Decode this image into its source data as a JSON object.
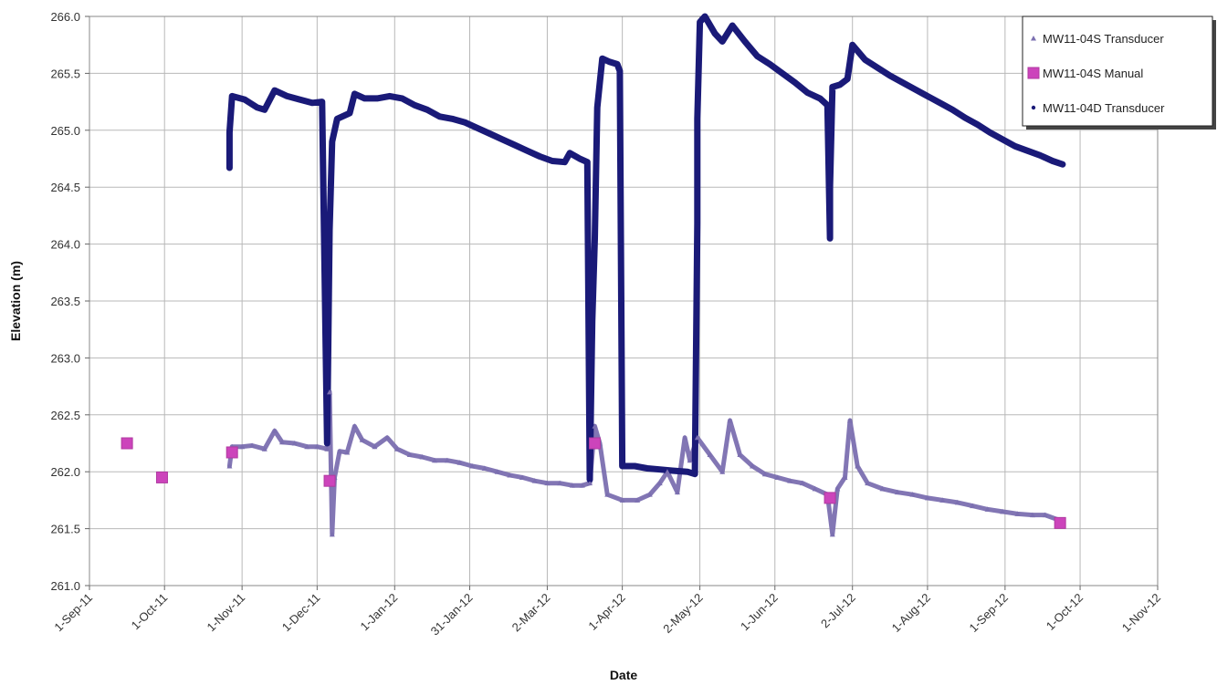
{
  "chart_data": {
    "type": "scatter",
    "xlabel": "Date",
    "ylabel": "Elevation (m)",
    "x_scale": "date",
    "xlim": [
      "2011-09-01",
      "2012-11-01"
    ],
    "ylim": [
      261.0,
      266.0
    ],
    "grid": true,
    "legend_position": "top-right",
    "x_tick_labels": [
      "1-Sep-11",
      "1-Oct-11",
      "1-Nov-11",
      "1-Dec-11",
      "1-Jan-12",
      "31-Jan-12",
      "2-Mar-12",
      "1-Apr-12",
      "2-May-12",
      "1-Jun-12",
      "2-Jul-12",
      "1-Aug-12",
      "1-Sep-12",
      "1-Oct-12",
      "1-Nov-12"
    ],
    "x_ticks": [
      "2011-09-01",
      "2011-10-01",
      "2011-11-01",
      "2011-12-01",
      "2012-01-01",
      "2012-01-31",
      "2012-03-02",
      "2012-04-01",
      "2012-05-02",
      "2012-06-01",
      "2012-07-02",
      "2012-08-01",
      "2012-09-01",
      "2012-10-01",
      "2012-11-01"
    ],
    "y_tick_labels": [
      "261.0",
      "261.5",
      "262.0",
      "262.5",
      "263.0",
      "263.5",
      "264.0",
      "264.5",
      "265.0",
      "265.5",
      "266.0"
    ],
    "y_ticks": [
      261.0,
      261.5,
      262.0,
      262.5,
      263.0,
      263.5,
      264.0,
      264.5,
      265.0,
      265.5,
      266.0
    ],
    "series": [
      {
        "name": "MW11-04S Transducer",
        "marker": "triangle",
        "color": "#7b6fb0",
        "points": [
          [
            "2011-10-27",
            262.05
          ],
          [
            "2011-10-28",
            262.22
          ],
          [
            "2011-11-01",
            262.22
          ],
          [
            "2011-11-05",
            262.23
          ],
          [
            "2011-11-10",
            262.2
          ],
          [
            "2011-11-14",
            262.36
          ],
          [
            "2011-11-17",
            262.26
          ],
          [
            "2011-11-22",
            262.25
          ],
          [
            "2011-11-27",
            262.22
          ],
          [
            "2011-12-01",
            262.22
          ],
          [
            "2011-12-05",
            262.2
          ],
          [
            "2011-12-06",
            262.7
          ],
          [
            "2011-12-07",
            261.45
          ],
          [
            "2011-12-08",
            261.95
          ],
          [
            "2011-12-10",
            262.18
          ],
          [
            "2011-12-13",
            262.17
          ],
          [
            "2011-12-16",
            262.4
          ],
          [
            "2011-12-19",
            262.28
          ],
          [
            "2011-12-24",
            262.22
          ],
          [
            "2011-12-29",
            262.3
          ],
          [
            "2012-01-02",
            262.2
          ],
          [
            "2012-01-07",
            262.15
          ],
          [
            "2012-01-12",
            262.13
          ],
          [
            "2012-01-17",
            262.1
          ],
          [
            "2012-01-22",
            262.1
          ],
          [
            "2012-01-27",
            262.08
          ],
          [
            "2012-02-01",
            262.05
          ],
          [
            "2012-02-06",
            262.03
          ],
          [
            "2012-02-11",
            262.0
          ],
          [
            "2012-02-16",
            261.97
          ],
          [
            "2012-02-21",
            261.95
          ],
          [
            "2012-02-26",
            261.92
          ],
          [
            "2012-03-02",
            261.9
          ],
          [
            "2012-03-07",
            261.9
          ],
          [
            "2012-03-12",
            261.88
          ],
          [
            "2012-03-16",
            261.88
          ],
          [
            "2012-03-19",
            261.9
          ],
          [
            "2012-03-21",
            262.4
          ],
          [
            "2012-03-23",
            262.25
          ],
          [
            "2012-03-26",
            261.8
          ],
          [
            "2012-04-01",
            261.75
          ],
          [
            "2012-04-07",
            261.75
          ],
          [
            "2012-04-12",
            261.8
          ],
          [
            "2012-04-16",
            261.9
          ],
          [
            "2012-04-19",
            262.0
          ],
          [
            "2012-04-23",
            261.82
          ],
          [
            "2012-04-26",
            262.3
          ],
          [
            "2012-04-28",
            262.1
          ],
          [
            "2012-05-01",
            262.3
          ],
          [
            "2012-05-06",
            262.15
          ],
          [
            "2012-05-11",
            262.0
          ],
          [
            "2012-05-14",
            262.45
          ],
          [
            "2012-05-18",
            262.15
          ],
          [
            "2012-05-23",
            262.05
          ],
          [
            "2012-05-28",
            261.98
          ],
          [
            "2012-06-02",
            261.95
          ],
          [
            "2012-06-07",
            261.92
          ],
          [
            "2012-06-12",
            261.9
          ],
          [
            "2012-06-17",
            261.85
          ],
          [
            "2012-06-22",
            261.8
          ],
          [
            "2012-06-24",
            261.45
          ],
          [
            "2012-06-26",
            261.85
          ],
          [
            "2012-06-29",
            261.95
          ],
          [
            "2012-07-01",
            262.45
          ],
          [
            "2012-07-04",
            262.05
          ],
          [
            "2012-07-08",
            261.9
          ],
          [
            "2012-07-14",
            261.85
          ],
          [
            "2012-07-20",
            261.82
          ],
          [
            "2012-07-26",
            261.8
          ],
          [
            "2012-08-01",
            261.77
          ],
          [
            "2012-08-07",
            261.75
          ],
          [
            "2012-08-13",
            261.73
          ],
          [
            "2012-08-19",
            261.7
          ],
          [
            "2012-08-25",
            261.67
          ],
          [
            "2012-08-31",
            261.65
          ],
          [
            "2012-09-06",
            261.63
          ],
          [
            "2012-09-12",
            261.62
          ],
          [
            "2012-09-17",
            261.62
          ],
          [
            "2012-09-22",
            261.58
          ]
        ]
      },
      {
        "name": "MW11-04S Manual",
        "marker": "square",
        "color": "#cc44bb",
        "points": [
          [
            "2011-09-16",
            262.25
          ],
          [
            "2011-09-30",
            261.95
          ],
          [
            "2011-10-28",
            262.17
          ],
          [
            "2011-12-06",
            261.92
          ],
          [
            "2012-03-21",
            262.25
          ],
          [
            "2012-06-23",
            261.77
          ],
          [
            "2012-09-23",
            261.55
          ]
        ]
      },
      {
        "name": "MW11-04D Transducer",
        "marker": "dot",
        "color": "#1a1a78",
        "points": [
          [
            "2011-10-27",
            264.67
          ],
          [
            "2011-10-27",
            264.98
          ],
          [
            "2011-10-28",
            265.3
          ],
          [
            "2011-11-02",
            265.27
          ],
          [
            "2011-11-07",
            265.2
          ],
          [
            "2011-11-10",
            265.18
          ],
          [
            "2011-11-14",
            265.35
          ],
          [
            "2011-11-19",
            265.3
          ],
          [
            "2011-11-24",
            265.27
          ],
          [
            "2011-11-29",
            265.24
          ],
          [
            "2011-12-03",
            265.25
          ],
          [
            "2011-12-05",
            262.25
          ],
          [
            "2011-12-06",
            264.12
          ],
          [
            "2011-12-07",
            264.9
          ],
          [
            "2011-12-09",
            265.1
          ],
          [
            "2011-12-14",
            265.15
          ],
          [
            "2011-12-16",
            265.32
          ],
          [
            "2011-12-20",
            265.28
          ],
          [
            "2011-12-25",
            265.28
          ],
          [
            "2011-12-30",
            265.3
          ],
          [
            "2012-01-04",
            265.28
          ],
          [
            "2012-01-09",
            265.22
          ],
          [
            "2012-01-14",
            265.18
          ],
          [
            "2012-01-19",
            265.12
          ],
          [
            "2012-01-24",
            265.1
          ],
          [
            "2012-01-29",
            265.07
          ],
          [
            "2012-02-03",
            265.02
          ],
          [
            "2012-02-08",
            264.97
          ],
          [
            "2012-02-13",
            264.92
          ],
          [
            "2012-02-18",
            264.87
          ],
          [
            "2012-02-23",
            264.82
          ],
          [
            "2012-02-28",
            264.77
          ],
          [
            "2012-03-04",
            264.73
          ],
          [
            "2012-03-09",
            264.72
          ],
          [
            "2012-03-11",
            264.8
          ],
          [
            "2012-03-15",
            264.75
          ],
          [
            "2012-03-18",
            264.72
          ],
          [
            "2012-03-19",
            261.93
          ],
          [
            "2012-03-20",
            263.32
          ],
          [
            "2012-03-21",
            264.05
          ],
          [
            "2012-03-22",
            265.2
          ],
          [
            "2012-03-24",
            265.63
          ],
          [
            "2012-03-27",
            265.6
          ],
          [
            "2012-03-30",
            265.58
          ],
          [
            "2012-03-31",
            265.52
          ],
          [
            "2012-04-01",
            262.05
          ],
          [
            "2012-04-06",
            262.05
          ],
          [
            "2012-04-11",
            262.03
          ],
          [
            "2012-04-16",
            262.02
          ],
          [
            "2012-04-21",
            262.01
          ],
          [
            "2012-04-27",
            262.0
          ],
          [
            "2012-04-30",
            261.98
          ],
          [
            "2012-05-01",
            264.18
          ],
          [
            "2012-05-01",
            264.55
          ],
          [
            "2012-05-01",
            265.1
          ],
          [
            "2012-05-02",
            265.95
          ],
          [
            "2012-05-04",
            266.0
          ],
          [
            "2012-05-08",
            265.85
          ],
          [
            "2012-05-11",
            265.78
          ],
          [
            "2012-05-15",
            265.92
          ],
          [
            "2012-05-20",
            265.78
          ],
          [
            "2012-05-25",
            265.65
          ],
          [
            "2012-05-30",
            265.58
          ],
          [
            "2012-06-04",
            265.5
          ],
          [
            "2012-06-09",
            265.42
          ],
          [
            "2012-06-14",
            265.33
          ],
          [
            "2012-06-19",
            265.28
          ],
          [
            "2012-06-22",
            265.22
          ],
          [
            "2012-06-23",
            264.05
          ],
          [
            "2012-06-23",
            264.5
          ],
          [
            "2012-06-24",
            265.38
          ],
          [
            "2012-06-27",
            265.4
          ],
          [
            "2012-06-30",
            265.45
          ],
          [
            "2012-07-02",
            265.75
          ],
          [
            "2012-07-07",
            265.62
          ],
          [
            "2012-07-12",
            265.55
          ],
          [
            "2012-07-17",
            265.48
          ],
          [
            "2012-07-22",
            265.42
          ],
          [
            "2012-07-27",
            265.36
          ],
          [
            "2012-08-01",
            265.3
          ],
          [
            "2012-08-06",
            265.24
          ],
          [
            "2012-08-11",
            265.18
          ],
          [
            "2012-08-16",
            265.11
          ],
          [
            "2012-08-21",
            265.05
          ],
          [
            "2012-08-26",
            264.98
          ],
          [
            "2012-08-31",
            264.92
          ],
          [
            "2012-09-05",
            264.86
          ],
          [
            "2012-09-10",
            264.82
          ],
          [
            "2012-09-15",
            264.78
          ],
          [
            "2012-09-20",
            264.73
          ],
          [
            "2012-09-24",
            264.7
          ]
        ]
      }
    ]
  }
}
